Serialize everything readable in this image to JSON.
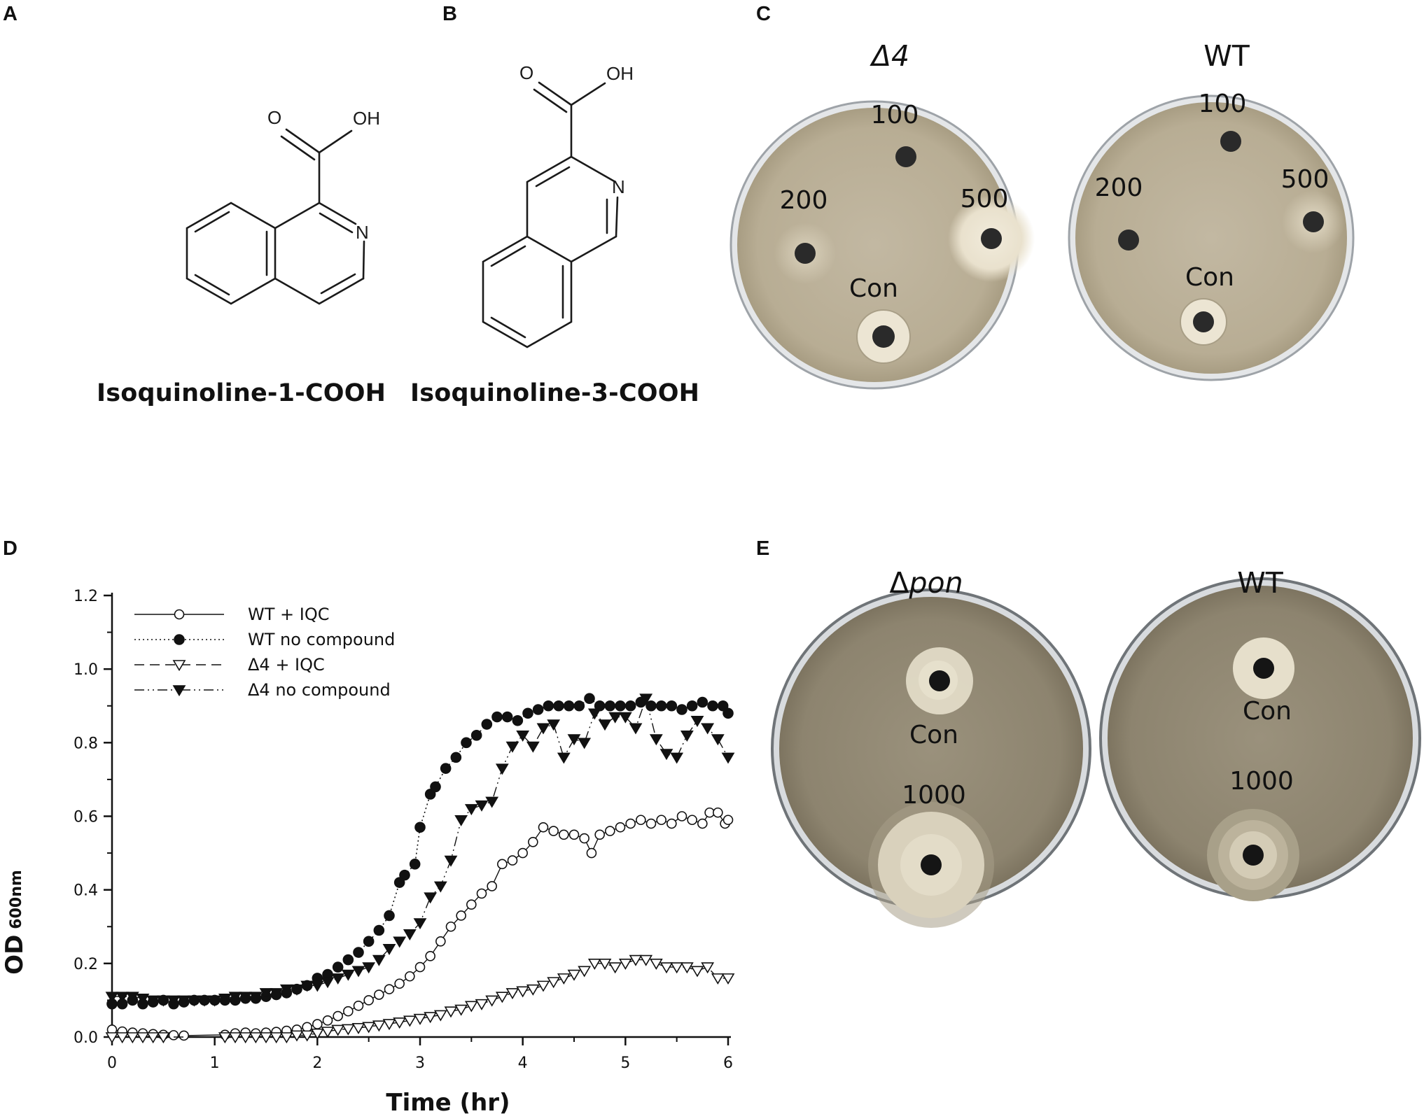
{
  "panels": {
    "a": {
      "letter": "A",
      "compound": "Isoquinoline-1-COOH",
      "atoms": {
        "o": "O",
        "oh": "OH",
        "n": "N"
      }
    },
    "b": {
      "letter": "B",
      "compound": "Isoquinoline-3-COOH",
      "atoms": {
        "o": "O",
        "oh": "OH",
        "n": "N"
      }
    },
    "c": {
      "letter": "C",
      "plates": [
        {
          "title": "Δ4",
          "labels": {
            "top": "100",
            "left": "200",
            "right": "500",
            "bottom": "Con"
          }
        },
        {
          "title": "WT",
          "labels": {
            "top": "100",
            "left": "200",
            "right": "500",
            "bottom": "Con"
          }
        }
      ]
    },
    "d": {
      "letter": "D"
    },
    "e": {
      "letter": "E",
      "plates": [
        {
          "title": "Δpon",
          "labels": {
            "upper": "Con",
            "lower": "1000"
          }
        },
        {
          "title": "WT",
          "labels": {
            "upper": "Con",
            "lower": "1000"
          }
        }
      ]
    }
  },
  "colors": {
    "plate_agar": "#b8ad94",
    "plate_agar_dark": "#8d846f",
    "plate_rim": "#cfd3d6",
    "well": "#2a2a2a",
    "zone": "#e7e0cf"
  },
  "chart_data": {
    "type": "scatter",
    "xlabel": "Time (hr)",
    "ylabel": "OD",
    "ylabel_sub": "600nm",
    "xlim": [
      0,
      6
    ],
    "ylim": [
      0,
      1.2
    ],
    "xticks": [
      "0",
      "1",
      "2",
      "3",
      "4",
      "5",
      "6"
    ],
    "yticks": [
      "0.0",
      "0.2",
      "0.4",
      "0.6",
      "0.8",
      "1.0",
      "1.2"
    ],
    "legend_position": "top-left",
    "grid": false,
    "series": [
      {
        "name": "WT + IQC",
        "marker": "open-circle",
        "line": "solid",
        "points": [
          [
            0,
            0.02
          ],
          [
            0.1,
            0.015
          ],
          [
            0.2,
            0.012
          ],
          [
            0.3,
            0.01
          ],
          [
            0.4,
            0.008
          ],
          [
            0.5,
            0.006
          ],
          [
            0.6,
            0.005
          ],
          [
            0.7,
            0.004
          ],
          [
            1.1,
            0.006
          ],
          [
            1.2,
            0.01
          ],
          [
            1.3,
            0.012
          ],
          [
            1.4,
            0.01
          ],
          [
            1.5,
            0.012
          ],
          [
            1.6,
            0.014
          ],
          [
            1.7,
            0.017
          ],
          [
            1.8,
            0.02
          ],
          [
            1.9,
            0.027
          ],
          [
            2.0,
            0.035
          ],
          [
            2.1,
            0.045
          ],
          [
            2.2,
            0.057
          ],
          [
            2.3,
            0.07
          ],
          [
            2.4,
            0.085
          ],
          [
            2.5,
            0.1
          ],
          [
            2.6,
            0.115
          ],
          [
            2.7,
            0.13
          ],
          [
            2.8,
            0.145
          ],
          [
            2.9,
            0.165
          ],
          [
            3.0,
            0.19
          ],
          [
            3.1,
            0.22
          ],
          [
            3.2,
            0.26
          ],
          [
            3.3,
            0.3
          ],
          [
            3.4,
            0.33
          ],
          [
            3.5,
            0.36
          ],
          [
            3.6,
            0.39
          ],
          [
            3.7,
            0.41
          ],
          [
            3.8,
            0.47
          ],
          [
            3.9,
            0.48
          ],
          [
            4.0,
            0.5
          ],
          [
            4.1,
            0.53
          ],
          [
            4.2,
            0.57
          ],
          [
            4.3,
            0.56
          ],
          [
            4.4,
            0.55
          ],
          [
            4.5,
            0.55
          ],
          [
            4.6,
            0.54
          ],
          [
            4.67,
            0.5
          ],
          [
            4.75,
            0.55
          ],
          [
            4.85,
            0.56
          ],
          [
            4.95,
            0.57
          ],
          [
            5.05,
            0.58
          ],
          [
            5.15,
            0.59
          ],
          [
            5.25,
            0.58
          ],
          [
            5.35,
            0.59
          ],
          [
            5.45,
            0.58
          ],
          [
            5.55,
            0.6
          ],
          [
            5.65,
            0.59
          ],
          [
            5.75,
            0.58
          ],
          [
            5.82,
            0.61
          ],
          [
            5.9,
            0.61
          ],
          [
            5.97,
            0.58
          ],
          [
            6.0,
            0.59
          ]
        ]
      },
      {
        "name": "WT no compound",
        "marker": "filled-circle",
        "line": "dotted",
        "points": [
          [
            0,
            0.09
          ],
          [
            0.1,
            0.09
          ],
          [
            0.2,
            0.1
          ],
          [
            0.3,
            0.09
          ],
          [
            0.4,
            0.095
          ],
          [
            0.5,
            0.1
          ],
          [
            0.6,
            0.09
          ],
          [
            0.7,
            0.095
          ],
          [
            0.8,
            0.1
          ],
          [
            0.9,
            0.1
          ],
          [
            1.0,
            0.1
          ],
          [
            1.1,
            0.1
          ],
          [
            1.2,
            0.1
          ],
          [
            1.3,
            0.105
          ],
          [
            1.4,
            0.105
          ],
          [
            1.5,
            0.11
          ],
          [
            1.6,
            0.115
          ],
          [
            1.7,
            0.12
          ],
          [
            1.8,
            0.13
          ],
          [
            1.9,
            0.14
          ],
          [
            2.0,
            0.16
          ],
          [
            2.1,
            0.17
          ],
          [
            2.2,
            0.19
          ],
          [
            2.3,
            0.21
          ],
          [
            2.4,
            0.23
          ],
          [
            2.5,
            0.26
          ],
          [
            2.6,
            0.29
          ],
          [
            2.7,
            0.33
          ],
          [
            2.8,
            0.42
          ],
          [
            2.85,
            0.44
          ],
          [
            2.95,
            0.47
          ],
          [
            3.0,
            0.57
          ],
          [
            3.1,
            0.66
          ],
          [
            3.15,
            0.68
          ],
          [
            3.25,
            0.73
          ],
          [
            3.35,
            0.76
          ],
          [
            3.45,
            0.8
          ],
          [
            3.55,
            0.82
          ],
          [
            3.65,
            0.85
          ],
          [
            3.75,
            0.87
          ],
          [
            3.85,
            0.87
          ],
          [
            3.95,
            0.86
          ],
          [
            4.05,
            0.88
          ],
          [
            4.15,
            0.89
          ],
          [
            4.25,
            0.9
          ],
          [
            4.35,
            0.9
          ],
          [
            4.45,
            0.9
          ],
          [
            4.55,
            0.9
          ],
          [
            4.65,
            0.92
          ],
          [
            4.75,
            0.9
          ],
          [
            4.85,
            0.9
          ],
          [
            4.95,
            0.9
          ],
          [
            5.05,
            0.9
          ],
          [
            5.15,
            0.91
          ],
          [
            5.25,
            0.9
          ],
          [
            5.35,
            0.9
          ],
          [
            5.45,
            0.9
          ],
          [
            5.55,
            0.89
          ],
          [
            5.65,
            0.9
          ],
          [
            5.75,
            0.91
          ],
          [
            5.85,
            0.9
          ],
          [
            5.95,
            0.9
          ],
          [
            6.0,
            0.88
          ]
        ]
      },
      {
        "name": "Δ4 + IQC",
        "marker": "open-triangle-down",
        "line": "dashed",
        "points": [
          [
            0,
            0.0
          ],
          [
            0.1,
            0.0
          ],
          [
            0.2,
            0.0
          ],
          [
            0.3,
            0.0
          ],
          [
            0.4,
            0.0
          ],
          [
            0.5,
            0.0
          ],
          [
            1.1,
            0.0
          ],
          [
            1.2,
            0.0
          ],
          [
            1.3,
            0.0
          ],
          [
            1.4,
            0.0
          ],
          [
            1.5,
            0.0
          ],
          [
            1.6,
            0.0
          ],
          [
            1.7,
            0.0
          ],
          [
            1.8,
            0.005
          ],
          [
            1.9,
            0.005
          ],
          [
            2.0,
            0.01
          ],
          [
            2.1,
            0.015
          ],
          [
            2.2,
            0.02
          ],
          [
            2.3,
            0.022
          ],
          [
            2.4,
            0.025
          ],
          [
            2.5,
            0.028
          ],
          [
            2.6,
            0.032
          ],
          [
            2.7,
            0.036
          ],
          [
            2.8,
            0.04
          ],
          [
            2.9,
            0.045
          ],
          [
            3.0,
            0.05
          ],
          [
            3.1,
            0.055
          ],
          [
            3.2,
            0.06
          ],
          [
            3.3,
            0.07
          ],
          [
            3.4,
            0.075
          ],
          [
            3.5,
            0.085
          ],
          [
            3.6,
            0.09
          ],
          [
            3.7,
            0.1
          ],
          [
            3.8,
            0.11
          ],
          [
            3.9,
            0.12
          ],
          [
            4.0,
            0.125
          ],
          [
            4.1,
            0.13
          ],
          [
            4.2,
            0.14
          ],
          [
            4.3,
            0.15
          ],
          [
            4.4,
            0.16
          ],
          [
            4.5,
            0.17
          ],
          [
            4.6,
            0.18
          ],
          [
            4.7,
            0.2
          ],
          [
            4.8,
            0.2
          ],
          [
            4.9,
            0.19
          ],
          [
            5.0,
            0.2
          ],
          [
            5.1,
            0.21
          ],
          [
            5.2,
            0.21
          ],
          [
            5.3,
            0.2
          ],
          [
            5.4,
            0.19
          ],
          [
            5.5,
            0.19
          ],
          [
            5.6,
            0.19
          ],
          [
            5.7,
            0.18
          ],
          [
            5.8,
            0.19
          ],
          [
            5.9,
            0.16
          ],
          [
            6.0,
            0.16
          ]
        ]
      },
      {
        "name": "Δ4 no compound",
        "marker": "filled-triangle-down",
        "line": "dash-dot-dot",
        "points": [
          [
            0,
            0.11
          ],
          [
            0.1,
            0.11
          ],
          [
            0.2,
            0.11
          ],
          [
            0.3,
            0.105
          ],
          [
            0.4,
            0.1
          ],
          [
            0.5,
            0.1
          ],
          [
            0.6,
            0.1
          ],
          [
            0.7,
            0.1
          ],
          [
            0.8,
            0.1
          ],
          [
            0.9,
            0.1
          ],
          [
            1.0,
            0.1
          ],
          [
            1.1,
            0.105
          ],
          [
            1.2,
            0.11
          ],
          [
            1.3,
            0.11
          ],
          [
            1.4,
            0.11
          ],
          [
            1.5,
            0.12
          ],
          [
            1.6,
            0.12
          ],
          [
            1.7,
            0.13
          ],
          [
            1.8,
            0.13
          ],
          [
            1.9,
            0.14
          ],
          [
            2.0,
            0.14
          ],
          [
            2.1,
            0.15
          ],
          [
            2.2,
            0.16
          ],
          [
            2.3,
            0.17
          ],
          [
            2.4,
            0.18
          ],
          [
            2.5,
            0.19
          ],
          [
            2.6,
            0.21
          ],
          [
            2.7,
            0.24
          ],
          [
            2.8,
            0.26
          ],
          [
            2.9,
            0.28
          ],
          [
            3.0,
            0.31
          ],
          [
            3.1,
            0.38
          ],
          [
            3.2,
            0.41
          ],
          [
            3.3,
            0.48
          ],
          [
            3.4,
            0.59
          ],
          [
            3.5,
            0.62
          ],
          [
            3.6,
            0.63
          ],
          [
            3.7,
            0.64
          ],
          [
            3.8,
            0.73
          ],
          [
            3.9,
            0.79
          ],
          [
            4.0,
            0.82
          ],
          [
            4.1,
            0.79
          ],
          [
            4.2,
            0.84
          ],
          [
            4.3,
            0.85
          ],
          [
            4.4,
            0.76
          ],
          [
            4.5,
            0.81
          ],
          [
            4.6,
            0.8
          ],
          [
            4.7,
            0.88
          ],
          [
            4.8,
            0.85
          ],
          [
            4.9,
            0.87
          ],
          [
            5.0,
            0.87
          ],
          [
            5.1,
            0.84
          ],
          [
            5.2,
            0.92
          ],
          [
            5.3,
            0.81
          ],
          [
            5.4,
            0.77
          ],
          [
            5.5,
            0.76
          ],
          [
            5.6,
            0.82
          ],
          [
            5.7,
            0.86
          ],
          [
            5.8,
            0.84
          ],
          [
            5.9,
            0.81
          ],
          [
            6.0,
            0.76
          ]
        ]
      }
    ]
  }
}
